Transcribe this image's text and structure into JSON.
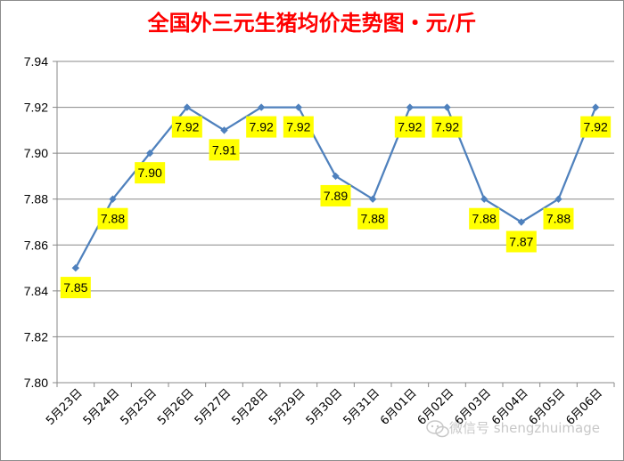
{
  "chart_data": {
    "type": "line",
    "title": "全国外三元生猪均价走势图・元/斤",
    "title_color": "#ff0000",
    "xlabel": "",
    "ylabel": "",
    "categories": [
      "5月23日",
      "5月24日",
      "5月25日",
      "5月26日",
      "5月27日",
      "5月28日",
      "5月29日",
      "5月30日",
      "5月31日",
      "6月01日",
      "6月02日",
      "6月03日",
      "6月04日",
      "6月05日",
      "6月06日"
    ],
    "values": [
      7.85,
      7.88,
      7.9,
      7.92,
      7.91,
      7.92,
      7.92,
      7.89,
      7.88,
      7.92,
      7.92,
      7.88,
      7.87,
      7.88,
      7.92
    ],
    "data_labels": [
      "7.85",
      "7.88",
      "7.90",
      "7.92",
      "7.91",
      "7.92",
      "7.92",
      "7.89",
      "7.88",
      "7.92",
      "7.92",
      "7.88",
      "7.87",
      "7.88",
      "7.92"
    ],
    "ylim": [
      7.8,
      7.94
    ],
    "yticks": [
      "7.80",
      "7.82",
      "7.84",
      "7.86",
      "7.88",
      "7.90",
      "7.92",
      "7.94"
    ],
    "grid": "horizontal",
    "legend": "none",
    "line_color": "#4f81bd",
    "label_background": "#ffff00"
  },
  "watermark": {
    "text": "微信号 shengzhuimage",
    "icon": "wechat-icon"
  }
}
